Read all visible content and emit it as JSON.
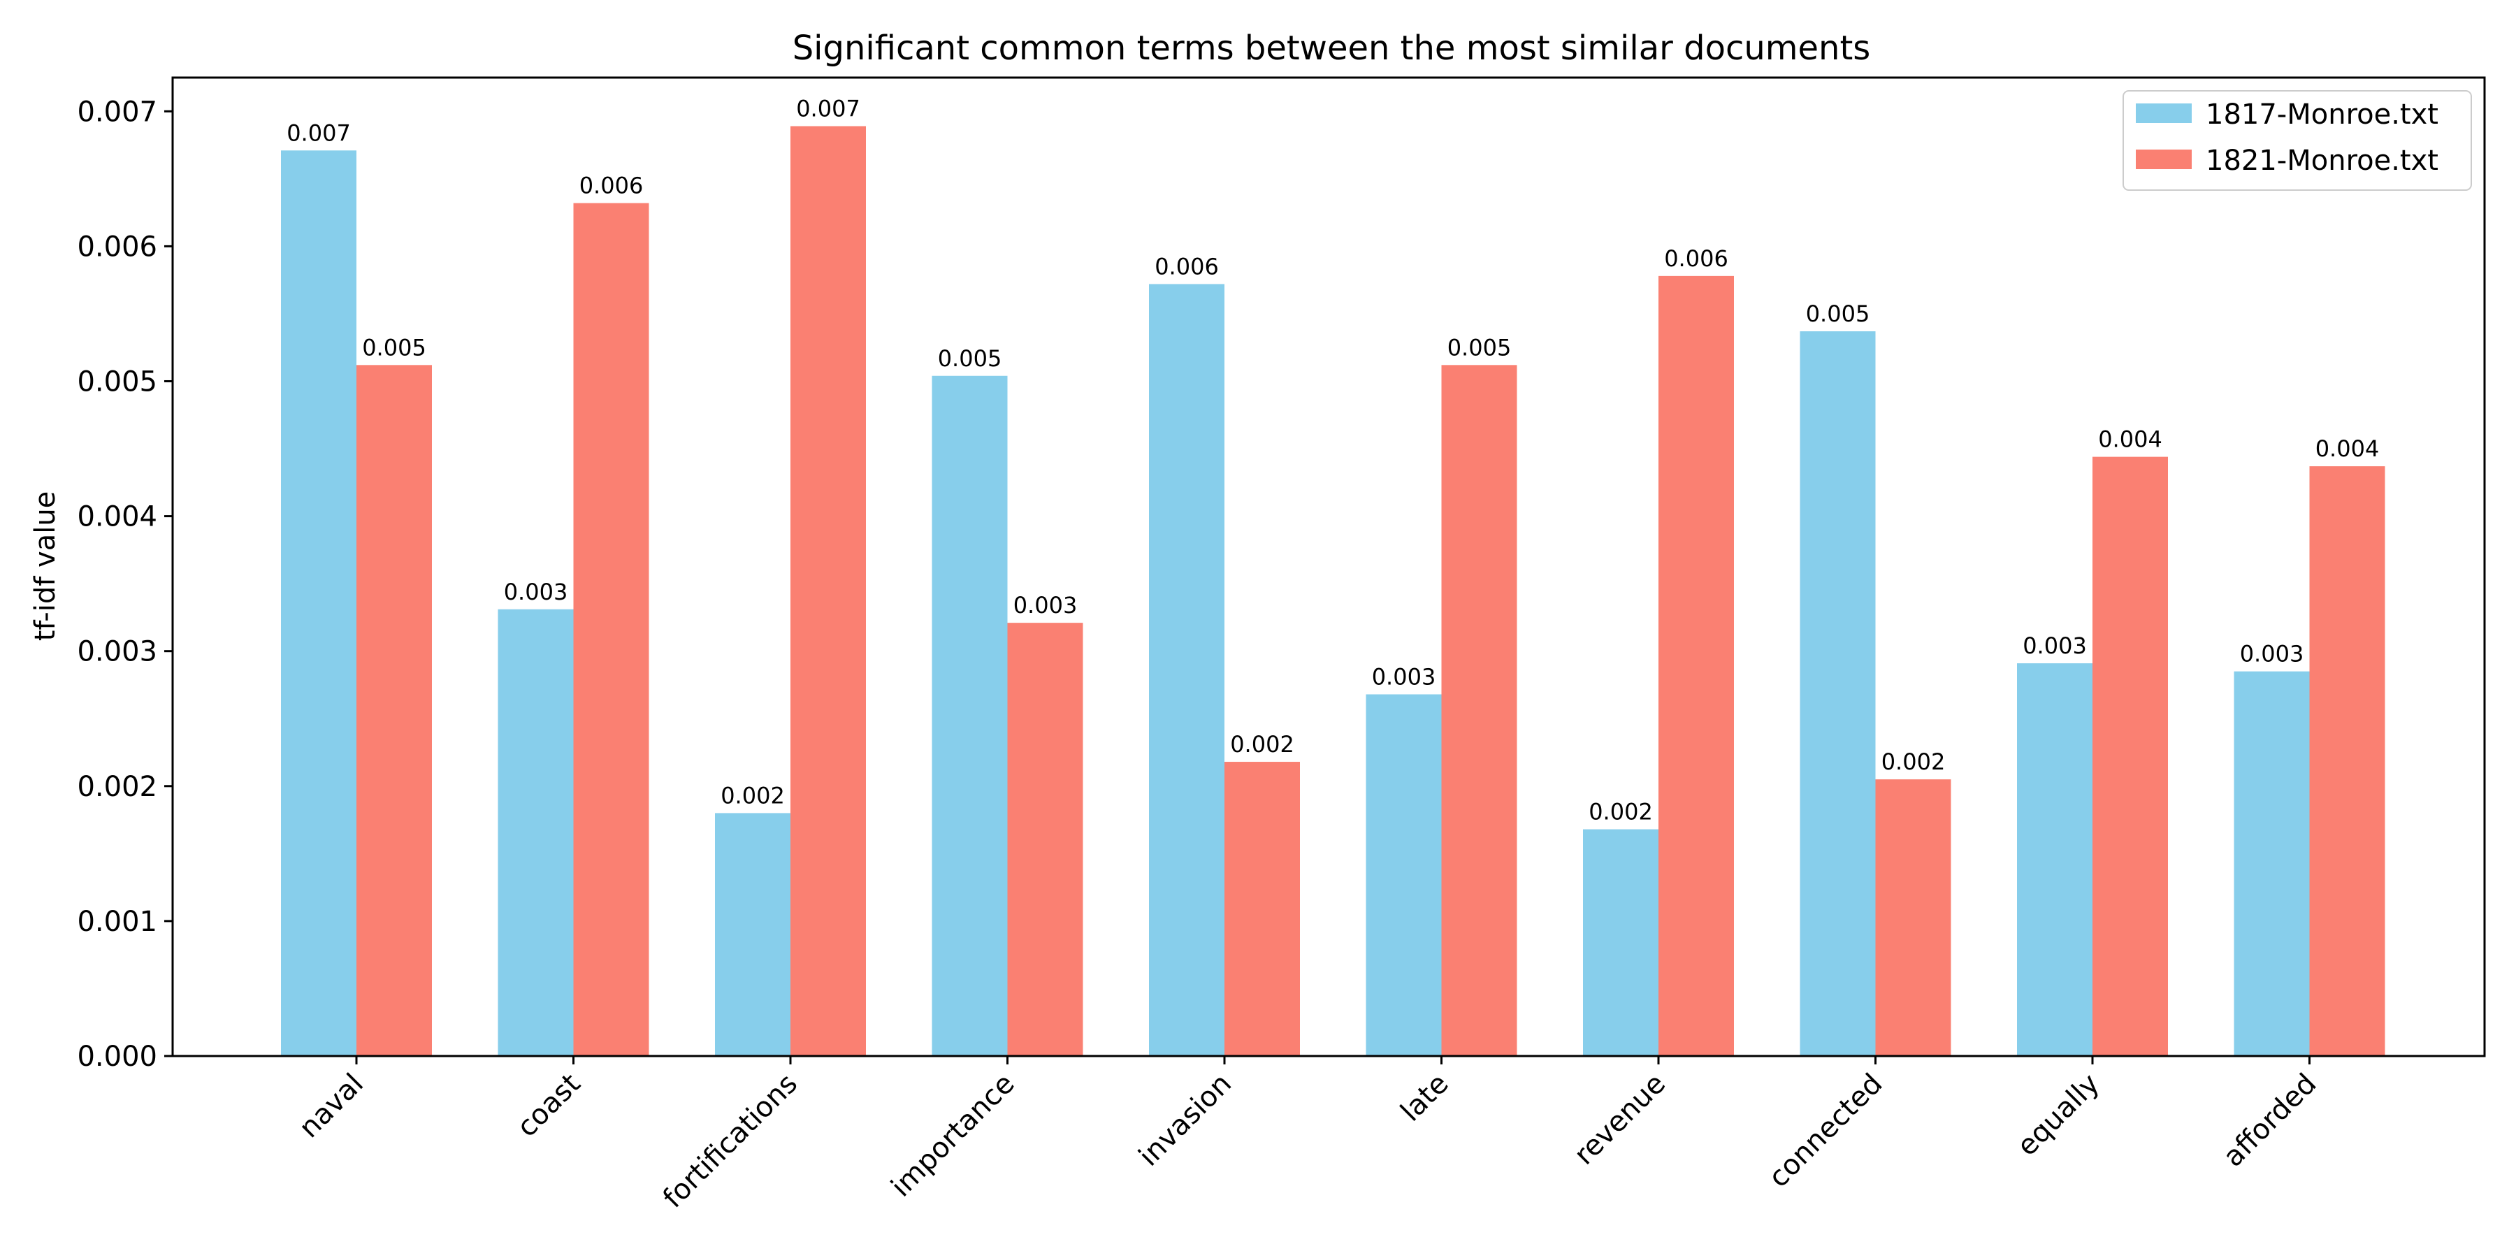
{
  "chart_data": {
    "type": "bar",
    "title": "Significant common terms between the most similar documents",
    "xlabel": "",
    "ylabel": "tf-idf value",
    "categories": [
      "naval",
      "coast",
      "fortifications",
      "importance",
      "invasion",
      "late",
      "revenue",
      "connected",
      "equally",
      "afforded"
    ],
    "series": [
      {
        "name": "1817-Monroe.txt",
        "color": "#87ceeb",
        "values": [
          0.00671,
          0.00331,
          0.0018,
          0.00504,
          0.00572,
          0.00268,
          0.00168,
          0.00537,
          0.00291,
          0.00285
        ],
        "labels": [
          "0.007",
          "0.003",
          "0.002",
          "0.005",
          "0.006",
          "0.003",
          "0.002",
          "0.005",
          "0.003",
          "0.003"
        ]
      },
      {
        "name": "1821-Monroe.txt",
        "color": "#fa8072",
        "values": [
          0.00512,
          0.00632,
          0.00689,
          0.00321,
          0.00218,
          0.00512,
          0.00578,
          0.00205,
          0.00444,
          0.00437
        ],
        "labels": [
          "0.005",
          "0.006",
          "0.007",
          "0.003",
          "0.002",
          "0.005",
          "0.006",
          "0.002",
          "0.004",
          "0.004"
        ]
      }
    ],
    "ylim": [
      0,
      0.00725
    ],
    "yticks": [
      "0.000",
      "0.001",
      "0.002",
      "0.003",
      "0.004",
      "0.005",
      "0.006",
      "0.007"
    ],
    "ytick_values": [
      0,
      0.001,
      0.002,
      0.003,
      0.004,
      0.005,
      0.006,
      0.007
    ],
    "grid": false,
    "legend_position": "top-right"
  }
}
